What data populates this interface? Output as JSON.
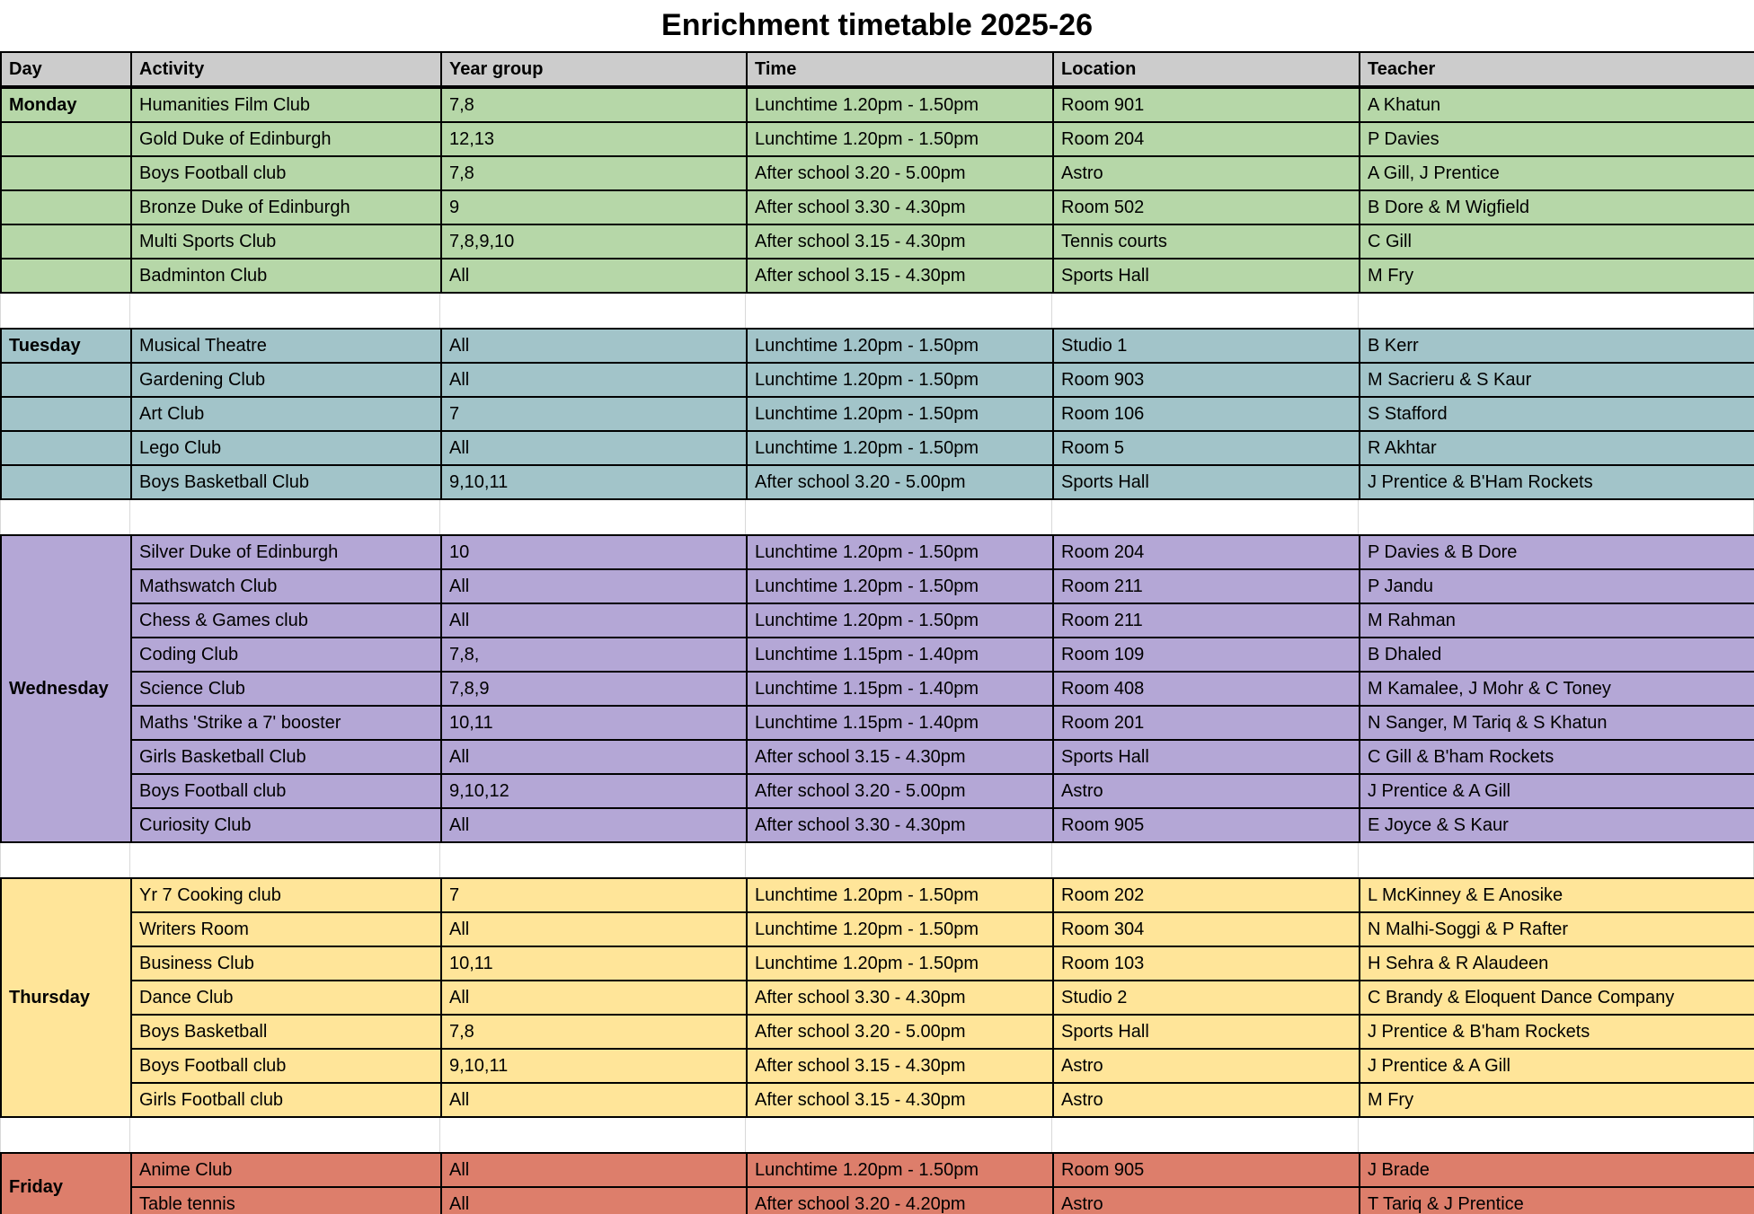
{
  "title": "Enrichment timetable 2025-26",
  "columns": {
    "day": "Day",
    "activity": "Activity",
    "year_group": "Year group",
    "time": "Time",
    "location": "Location",
    "teacher": "Teacher"
  },
  "colors": {
    "header_bg": "#cccccc",
    "monday": "#b6d7a8",
    "tuesday": "#a2c4c9",
    "wednesday": "#b4a7d6",
    "thursday": "#ffe599",
    "friday": "#dd7e6b",
    "border_dark": "#000000",
    "grid_light": "#d9d9d9"
  },
  "sections": [
    {
      "day": "Monday",
      "color_key": "monday",
      "merged_day_cell": false,
      "rows": [
        {
          "activity": "Humanities Film Club",
          "year_group": "7,8",
          "time": "Lunchtime 1.20pm - 1.50pm",
          "location": "Room 901",
          "teacher": "A Khatun"
        },
        {
          "activity": "Gold Duke of Edinburgh",
          "year_group": "12,13",
          "time": "Lunchtime 1.20pm - 1.50pm",
          "location": "Room 204",
          "teacher": "P Davies"
        },
        {
          "activity": "Boys Football club",
          "year_group": "7,8",
          "time": "After school 3.20 - 5.00pm",
          "location": "Astro",
          "teacher": "A Gill, J Prentice"
        },
        {
          "activity": "Bronze Duke of Edinburgh",
          "year_group": "9",
          "time": "After school 3.30 - 4.30pm",
          "location": "Room 502",
          "teacher": "B Dore & M Wigfield"
        },
        {
          "activity": "Multi Sports Club",
          "year_group": "7,8,9,10",
          "time": "After school 3.15 - 4.30pm",
          "location": "Tennis courts",
          "teacher": "C Gill"
        },
        {
          "activity": "Badminton Club",
          "year_group": "All",
          "time": "After school 3.15 - 4.30pm",
          "location": "Sports Hall",
          "teacher": "M Fry"
        }
      ]
    },
    {
      "day": "Tuesday",
      "color_key": "tuesday",
      "merged_day_cell": false,
      "rows": [
        {
          "activity": "Musical Theatre",
          "year_group": "All",
          "time": "Lunchtime 1.20pm - 1.50pm",
          "location": "Studio 1",
          "teacher": "B Kerr"
        },
        {
          "activity": "Gardening Club",
          "year_group": "All",
          "time": "Lunchtime 1.20pm - 1.50pm",
          "location": "Room 903",
          "teacher": "M Sacrieru & S Kaur"
        },
        {
          "activity": "Art Club",
          "year_group": "7",
          "time": "Lunchtime 1.20pm - 1.50pm",
          "location": "Room 106",
          "teacher": "S Stafford"
        },
        {
          "activity": "Lego Club",
          "year_group": "All",
          "time": "Lunchtime 1.20pm - 1.50pm",
          "location": "Room 5",
          "teacher": "R Akhtar"
        },
        {
          "activity": "Boys Basketball Club",
          "year_group": "9,10,11",
          "time": "After school 3.20 - 5.00pm",
          "location": "Sports Hall",
          "teacher": "J Prentice & B'Ham Rockets"
        }
      ]
    },
    {
      "day": "Wednesday",
      "color_key": "wednesday",
      "merged_day_cell": true,
      "rows": [
        {
          "activity": "Silver Duke of Edinburgh",
          "year_group": "10",
          "time": "Lunchtime 1.20pm - 1.50pm",
          "location": "Room 204",
          "teacher": "P Davies & B Dore"
        },
        {
          "activity": "Mathswatch Club",
          "year_group": "All",
          "time": "Lunchtime 1.20pm - 1.50pm",
          "location": "Room 211",
          "teacher": "P Jandu"
        },
        {
          "activity": "Chess & Games club",
          "year_group": "All",
          "time": "Lunchtime 1.20pm - 1.50pm",
          "location": "Room 211",
          "teacher": "M Rahman"
        },
        {
          "activity": "Coding Club",
          "year_group": "7,8,",
          "time": "Lunchtime 1.15pm - 1.40pm",
          "location": "Room 109",
          "teacher": "B Dhaled"
        },
        {
          "activity": "Science Club",
          "year_group": "7,8,9",
          "time": "Lunchtime 1.15pm - 1.40pm",
          "location": "Room 408",
          "teacher": "M Kamalee, J Mohr & C Toney"
        },
        {
          "activity": "Maths 'Strike a 7' booster",
          "year_group": "10,11",
          "time": "Lunchtime 1.15pm - 1.40pm",
          "location": "Room 201",
          "teacher": "N Sanger, M Tariq & S Khatun"
        },
        {
          "activity": "Girls Basketball Club",
          "year_group": "All",
          "time": "After school 3.15 - 4.30pm",
          "location": "Sports Hall",
          "teacher": "C Gill & B'ham Rockets"
        },
        {
          "activity": "Boys Football club",
          "year_group": "9,10,12",
          "time": "After school 3.20 - 5.00pm",
          "location": "Astro",
          "teacher": "J Prentice & A Gill"
        },
        {
          "activity": "Curiosity Club",
          "year_group": "All",
          "time": "After school 3.30 - 4.30pm",
          "location": "Room 905",
          "teacher": "E Joyce & S Kaur"
        }
      ]
    },
    {
      "day": "Thursday",
      "color_key": "thursday",
      "merged_day_cell": true,
      "rows": [
        {
          "activity": "Yr 7 Cooking club",
          "year_group": "7",
          "time": "Lunchtime 1.20pm - 1.50pm",
          "location": "Room 202",
          "teacher": "L McKinney & E Anosike"
        },
        {
          "activity": "Writers Room",
          "year_group": "All",
          "time": "Lunchtime 1.20pm - 1.50pm",
          "location": "Room 304",
          "teacher": "N Malhi-Soggi & P Rafter"
        },
        {
          "activity": "Business Club",
          "year_group": "10,11",
          "time": "Lunchtime 1.20pm - 1.50pm",
          "location": "Room 103",
          "teacher": "H Sehra & R Alaudeen"
        },
        {
          "activity": "Dance Club",
          "year_group": "All",
          "time": "After school 3.30 - 4.30pm",
          "location": "Studio 2",
          "teacher": "C Brandy & Eloquent Dance Company"
        },
        {
          "activity": "Boys Basketball",
          "year_group": "7,8",
          "time": "After school 3.20 - 5.00pm",
          "location": "Sports Hall",
          "teacher": "J Prentice & B'ham Rockets"
        },
        {
          "activity": "Boys Football club",
          "year_group": "9,10,11",
          "time": "After school 3.15 - 4.30pm",
          "location": "Astro",
          "teacher": "J Prentice & A Gill"
        },
        {
          "activity": "Girls Football club",
          "year_group": "All",
          "time": "After school 3.15 - 4.30pm",
          "location": "Astro",
          "teacher": "M Fry"
        }
      ]
    },
    {
      "day": "Friday",
      "color_key": "friday",
      "merged_day_cell": true,
      "rows": [
        {
          "activity": "Anime Club",
          "year_group": "All",
          "time": "Lunchtime 1.20pm - 1.50pm",
          "location": "Room 905",
          "teacher": "J Brade"
        },
        {
          "activity": "Table tennis",
          "year_group": "All",
          "time": "After school 3.20 - 4.20pm",
          "location": "Astro",
          "teacher": "T Tariq & J Prentice"
        }
      ]
    }
  ]
}
